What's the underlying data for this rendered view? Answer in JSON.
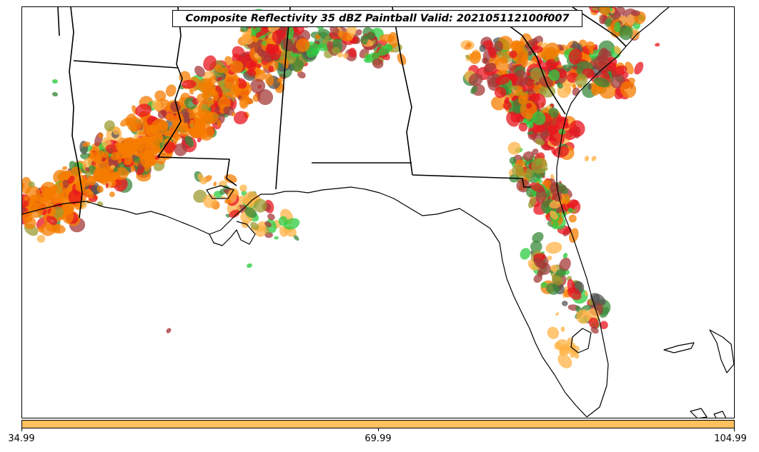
{
  "title": "Composite Reflectivity 35 dBZ Paintball Valid: 202105112100f007",
  "colorbar": {
    "color": "#ffc060",
    "ticks": [
      "34.99",
      "69.99",
      "104.99"
    ]
  },
  "colors": {
    "red": "#e8141e",
    "dark_red": "#a63a3a",
    "orange": "#f57c00",
    "light_orange": "#ffb347",
    "green": "#2ecc40",
    "dark_green": "#3a8a3a",
    "olive": "#9b9b30",
    "gray": "#555555",
    "coast": "#000000"
  }
}
